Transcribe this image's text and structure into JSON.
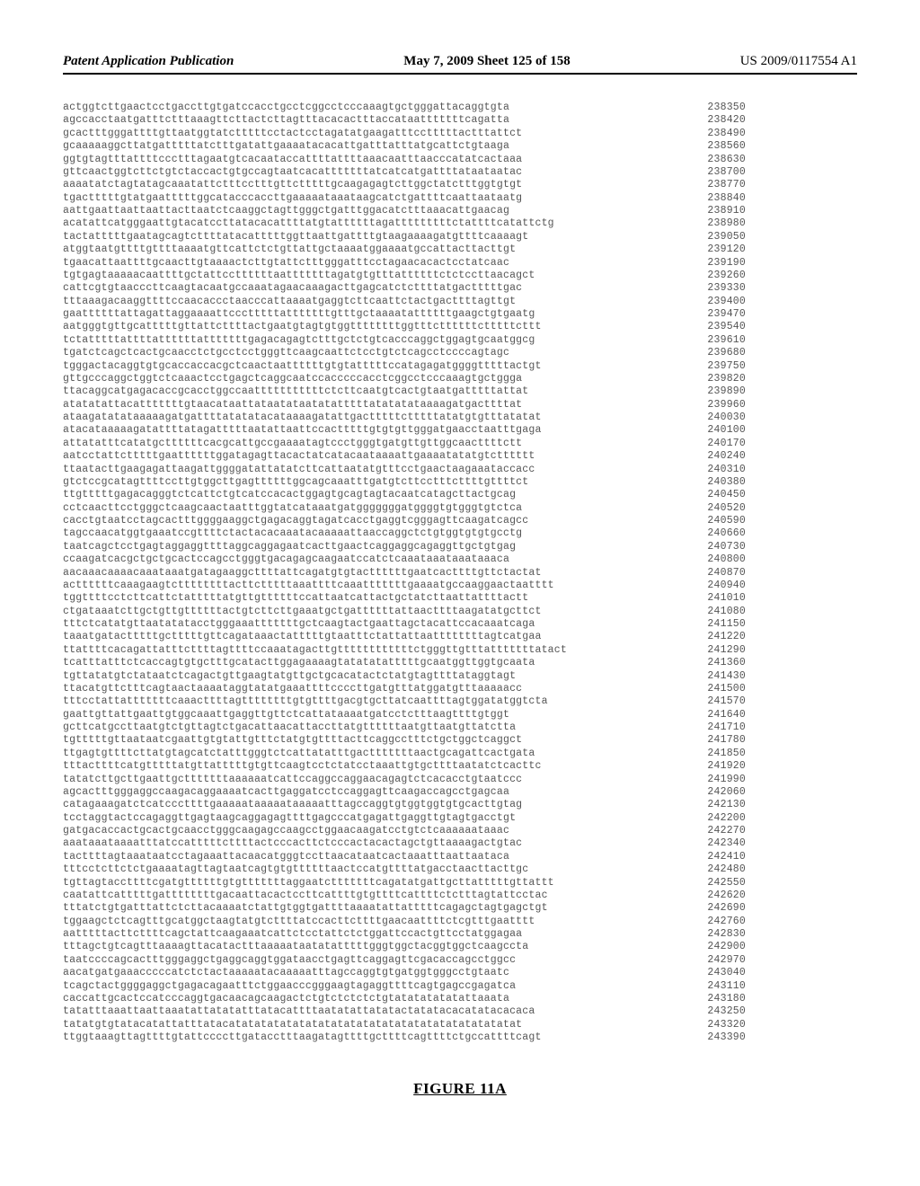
{
  "header": {
    "left": "Patent Application Publication",
    "center": "May 7, 2009  Sheet 125 of 158",
    "right": "US 2009/0117554 A1"
  },
  "figure_label": "FIGURE 11A",
  "sequence": {
    "font_family": "Courier New",
    "font_size_pt": 8.5,
    "text_color": "#555555",
    "rows": [
      {
        "seq": "actggtcttgaactcctgaccttgtgatccacctgcctcggcctcccaaagtgctgggattacaggtgta",
        "num": "238350"
      },
      {
        "seq": "agccacctaatgatttctttaaagttcttactcttagtttacacactttaccataatttttttcagatta",
        "num": "238420"
      },
      {
        "seq": "gcactttgggattttgttaatggtatctttttcctactcctagatatgaagatttcctttttactttattct",
        "num": "238490"
      },
      {
        "seq": "gcaaaaaggcttatgatttttatctttgatattgaaaatacacattgatttatttatgcattctgtaaga",
        "num": "238560"
      },
      {
        "seq": "ggtgtagtttattttccctttagaatgtcacaataccattttattttaaacaatttaacccatatcactaaa",
        "num": "238630"
      },
      {
        "seq": "gttcaactggtcttctgtctaccactgtgccagtaatcacatttttttatcatcatgattttataataatac",
        "num": "238700"
      },
      {
        "seq": "aaaatatctagtatagcaaatattctttcctttgttctttttgcaagagagtcttggctatctttggtgtgt",
        "num": "238770"
      },
      {
        "seq": "tgactttttgtatgaatttttggcatacccaccttgaaaaataaataagcatctgattttcaattaataatg",
        "num": "238840"
      },
      {
        "seq": "aattgaattaattaattacttaatctcaaggctagttgggctgatttggacatctttaaacattgaacag",
        "num": "238910"
      },
      {
        "seq": "acatattcatgggaattgtacatccttatacacattttatgtattttttagatttttttttctattttcatattctg",
        "num": "238980"
      },
      {
        "seq": "tactatttttgaatagcagtcttttatacatttttggttaattgattttgtaagaaaagatgttttcaaaagt",
        "num": "239050"
      },
      {
        "seq": "atggtaatgttttgttttaaaatgttcattctctgttattgctaaaatggaaaatgccattacttacttgt",
        "num": "239120"
      },
      {
        "seq": "tgaacattaattttgcaacttgtaaaactcttgtattctttgggatttcctagaacacactcctatcaac",
        "num": "239190"
      },
      {
        "seq": "tgtgagtaaaaacaattttgctattccttttttaatttttttagatgtgtttattttttctctccttaacagct",
        "num": "239260"
      },
      {
        "seq": "cattcgtgtaacccttcaagtacaatgccaaatagaacaaagacttgagcatctcttttatgactttttgac",
        "num": "239330"
      },
      {
        "seq": "tttaaagacaaggttttccaacaccctaacccattaaaatgaggtcttcaattctactgacttttagttgt",
        "num": "239400"
      },
      {
        "seq": "gaattttttattagattaggaaaattccctttttatttttttgtttgctaaaatattttttgaagctgtgaatg",
        "num": "239470"
      },
      {
        "seq": "aatgggtgttgcatttttgttattcttttactgaatgtagtgtggttttttttggtttcttttttctttttcttt",
        "num": "239540"
      },
      {
        "seq": "tctatttttattttattttttatttttttgagacagagtctttgctctgtcacccaggctggagtgcaatggcg",
        "num": "239610"
      },
      {
        "seq": "tgatctcagctcactgcaacctctgcctcctgggttcaagcaattctcctgtctcagcctccccagtagc",
        "num": "239680"
      },
      {
        "seq": "tgggactacaggtgtgcaccaccacgctcaactaattttttgtgtatttttccatagagatggggtttttactgt",
        "num": "239750"
      },
      {
        "seq": "gttgcccaggctggtctcaaactcctgagctcaggcaatccacccccacctcggcctcccaaagtgctggga",
        "num": "239820"
      },
      {
        "seq": "ttacaggcatgagacaccgcacctggccaatttttttttttctcttcaatgtcactgtaatgatttttattat",
        "num": "239890"
      },
      {
        "seq": "atatatattacatttttttgtaacataattataatataatatatttttatatatataaaagatgacttttat",
        "num": "239960"
      },
      {
        "seq": "ataagatatataaaaagatgattttatatatacataaaagatattgactttttctttttatatgtgtttatatat",
        "num": "240030"
      },
      {
        "seq": "atacataaaaagatattttatagatttttaatattaattccactttttgtgtgttgggatgaacctaatttgaga",
        "num": "240100"
      },
      {
        "seq": "attatatttcatatgcttttttcacgcattgccgaaaatagtccctgggtgatgttgttggcaacttttctt",
        "num": "240170"
      },
      {
        "seq": "aatcctattctttttgaattttttggatagagttacactatcatacaataaaattgaaaatatatgtctttttt",
        "num": "240240"
      },
      {
        "seq": "ttaatacttgaagagattaagattggggatattatatcttcattaatatgtttcctgaactaagaaataccacc",
        "num": "240310"
      },
      {
        "seq": "gtctccgcatagttttccttgtggcttgagttttttggcagcaaatttgatgtcttcctttcttttgttttct",
        "num": "240380"
      },
      {
        "seq": "ttgtttttgagacagggtctcattctgtcatccacactggagtgcagtagtacaatcatagcttactgcag",
        "num": "240450"
      },
      {
        "seq": "cctcaacttcctgggctcaagcaactaatttggtatcataaatgatgggggggatggggtgtgggtgtctca",
        "num": "240520"
      },
      {
        "seq": "cacctgtaatcctagcactttggggaaggctgagacaggtagatcacctgaggtcgggagttcaagatcagcc",
        "num": "240590"
      },
      {
        "seq": "tagccaacatggtgaaatccgttttctactacacaaatacaaaaattaaccaggctctgtggtgtgtgcctg",
        "num": "240660"
      },
      {
        "seq": "taatcagctcctgagtaggaggttttaggcaggagaatcacttgaactcaggaggcagaggttgctgtgag",
        "num": "240730"
      },
      {
        "seq": "ccaagatcacgctgctgcactccagcctgggtgacagagcaagaatccatctcaaataaataaataaaca",
        "num": "240800"
      },
      {
        "seq": "aacaaacaaaacaaataaatgatagaaggcttttattcagatgtgtacttttttgaatcacttttgttctactat",
        "num": "240870"
      },
      {
        "seq": "acttttttcaaagaagtcttttttttacttctttttaaattttcaaatttttttgaaaatgccaaggaactaatttt",
        "num": "240940"
      },
      {
        "seq": "tggttttcctcttcattctatttttatgttgttttttccattaatcattactgctatcttaattattttactt",
        "num": "241010"
      },
      {
        "seq": "ctgataaatcttgctgttgttttttactgtcttcttgaaatgctgattttttattaacttttaagatatgcttct",
        "num": "241080"
      },
      {
        "seq": "tttctcatatgttaatatatacctgggaaatttttttgctcaagtactgaattagctacattccacaaatcaga",
        "num": "241150"
      },
      {
        "seq": "taaatgatactttttgctttttgttcagataaactatttttgtaatttctattattaattttttttagtcatgaa",
        "num": "241220"
      },
      {
        "seq": "ttattttcacagattatttcttttagttttccaaatagacttgttttttttttttctgggttgtttatttttttatact",
        "num": "241290"
      },
      {
        "seq": "tcatttatttctcaccagtgtgctttgcatacttggagaaaagtatatatatttttgcaatggttggtgcaata",
        "num": "241360"
      },
      {
        "seq": "tgttatatgtctataatctcagactgttgaagtatgttgctgcacatactctatgtagttttataggtagt",
        "num": "241430"
      },
      {
        "seq": "ttacatgttctttcagtaactaaaataggtatatgaaattttccccttgatgtttatggatgtttaaaaacc",
        "num": "241500"
      },
      {
        "seq": "tttcctattatttttttcaaacttttagttttttttgtgttttgacgtgcttatcaattttagtggatatggtcta",
        "num": "241570"
      },
      {
        "seq": "gaattgttattgaattgtggcaaattgaggttgttctcattataaaatgatcctctttaagttttgtggt",
        "num": "241640"
      },
      {
        "seq": "gcttcatgccttaatgtctgttagtctgacattaacattaccttatgttttttaatgttaatgttatctta",
        "num": "241710"
      },
      {
        "seq": "tgtttttgttaataatcgaattgtgtattgtttctatgtgttttacttcaggcctttctgctggctcaggct",
        "num": "241780"
      },
      {
        "seq": "ttgagtgttttcttatgtagcatctatttgggtctcattatatttgactttttttaactgcagattcactgata",
        "num": "241850"
      },
      {
        "seq": "tttacttttcatgtttttatgttatttttgtgttcaagtcctctatcctaaattgtgcttttaatatctcacttc",
        "num": "241920"
      },
      {
        "seq": "tatatcttgcttgaattgctttttttaaaaaatcattccaggccaggaacagagtctcacacctgtaatccc",
        "num": "241990"
      },
      {
        "seq": "agcactttgggaggccaagacaggaaaatcacttgaggatcctccaggagttcaagaccagcctgagcaa",
        "num": "242060"
      },
      {
        "seq": "catagaaagatctcatcccttttgaaaaataaaaataaaaatttagccaggtgtggtggtgtgcacttgtag",
        "num": "242130"
      },
      {
        "seq": "tcctaggtactccagaggttgagtaagcaggagagttttgagcccatgagattgaggttgtagtgacctgt",
        "num": "242200"
      },
      {
        "seq": "gatgacaccactgcactgcaacctgggcaagagccaagcctggaacaagatcctgtctcaaaaaataaac",
        "num": "242270"
      },
      {
        "seq": "aaataaataaaatttatccatttttcttttactcccacttctcccactacactagctgttaaaagactgtac",
        "num": "242340"
      },
      {
        "seq": "tacttttagtaaataatcctagaaattacaacatgggtccttaacataatcactaaatttaattaataca",
        "num": "242410"
      },
      {
        "seq": "tttcctcttctctgaaaatagttagtaatcagtgtgttttttaactccatgttttatgacctaacttacttgc",
        "num": "242480"
      },
      {
        "seq": "tgttagtaccttttcgatgttttttgtgtttttttaggaatctttttttcagatatgattgcttatttttgttattt",
        "num": "242550"
      },
      {
        "seq": "caatattcatttttgattttttttgacaattacactccttcattttgtgttttcattttctctttagtattcctac",
        "num": "242620"
      },
      {
        "seq": "tttatctgtgatttattctcttacaaaatctattgtggtgattttaaaatattatttttcagagctagtgagctgt",
        "num": "242690"
      },
      {
        "seq": "tggaagctctcagtttgcatggctaagtatgtcttttatccacttcttttgaacaattttctcgtttgaatttt",
        "num": "242760"
      },
      {
        "seq": "aatttttacttcttttcagctattcaagaaatcattctcctattctctggattccactgttcctatggagaa",
        "num": "242830"
      },
      {
        "seq": "tttagctgtcagtttaaaagttacatactttaaaaataatatatttttgggtggctacggtggctcaagccta",
        "num": "242900"
      },
      {
        "seq": "taatccccagcactttgggaggctgaggcaggtggataacctgagttcaggagttcgacaccagcctggcc",
        "num": "242970"
      },
      {
        "seq": "aacatgatgaaacccccatctctactaaaaatacaaaaatttagccaggtgtgatggtgggcctgtaatc",
        "num": "243040"
      },
      {
        "seq": "tcagctactggggaggctgagacagaatttctggaacccgggaagtagaggttttcagtgagccgagatca",
        "num": "243110"
      },
      {
        "seq": "caccattgcactccatcccaggtgacaacagcaagactctgtctctctctgtatatatatatattaaata",
        "num": "243180"
      },
      {
        "seq": "tatatttaaattaattaaatattatatatttatacattttaatatattatatactatatacacatatacacaca",
        "num": "243250"
      },
      {
        "seq": "tatatgtgtatacatattatttatacatatatatatatatatatatatatatatatatatatatatatatat",
        "num": "243320"
      },
      {
        "seq": "ttggtaaagttagttttgtattccccttgatacctttaagatagttttgcttttcagttttctgccattttcagt",
        "num": "243390"
      }
    ]
  }
}
